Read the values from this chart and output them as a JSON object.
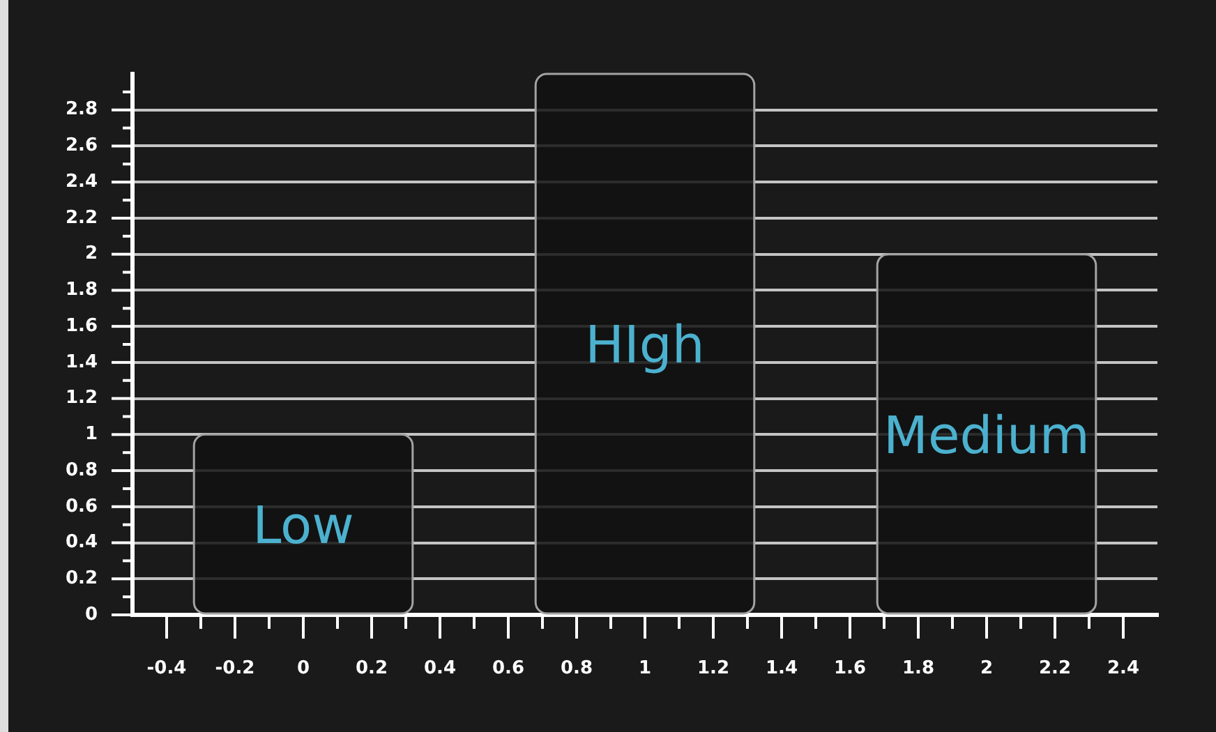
{
  "chart_data": {
    "type": "bar",
    "x": [
      0,
      1,
      2
    ],
    "values": [
      1,
      3,
      2
    ],
    "value_labels": [
      "Low",
      "HIgh",
      "Medium"
    ],
    "color": "#121212",
    "xlim": [
      -0.5,
      2.5
    ],
    "xticks": [
      -0.4,
      {
        "value": -0.3,
        "label": null
      },
      -0.2,
      {
        "value": -0.1,
        "label": null
      },
      0,
      {
        "value": 0.1,
        "label": null
      },
      0.2,
      {
        "value": 0.3,
        "label": null
      },
      0.4,
      {
        "value": 0.5,
        "label": null
      },
      0.6,
      {
        "value": 0.7,
        "label": null
      },
      0.8,
      {
        "value": 0.9,
        "label": null
      },
      1,
      {
        "value": 1.1,
        "label": null
      },
      1.2,
      {
        "value": 1.3,
        "label": null
      },
      1.4,
      {
        "value": 1.5,
        "label": null
      },
      1.6,
      {
        "value": 1.7,
        "label": null
      },
      1.8,
      {
        "value": 1.9,
        "label": null
      },
      2,
      {
        "value": 2.1,
        "label": null
      },
      2.2,
      {
        "value": 2.3,
        "label": null
      },
      2.4
    ],
    "ylim": [
      0,
      3
    ],
    "yticks": [
      0,
      {
        "value": 0.1,
        "label": null
      },
      0.2,
      {
        "value": 0.3,
        "label": null
      },
      0.4,
      {
        "value": 0.5,
        "label": null
      },
      0.6,
      {
        "value": 0.7,
        "label": null
      },
      0.8,
      {
        "value": 0.9,
        "label": null
      },
      1,
      {
        "value": 1.1,
        "label": null
      },
      1.2,
      {
        "value": 1.3,
        "label": null
      },
      1.4,
      {
        "value": 1.5,
        "label": null
      },
      1.6,
      {
        "value": 1.7,
        "label": null
      },
      1.8,
      {
        "value": 1.9,
        "label": null
      },
      2,
      {
        "value": 2.1,
        "label": null
      },
      2.2,
      {
        "value": 2.3,
        "label": null
      },
      2.4,
      {
        "value": 2.5,
        "label": null
      },
      2.6,
      {
        "value": 2.7,
        "label": null
      },
      2.8,
      {
        "value": 2.9,
        "label": null
      }
    ],
    "grid": "y"
  }
}
